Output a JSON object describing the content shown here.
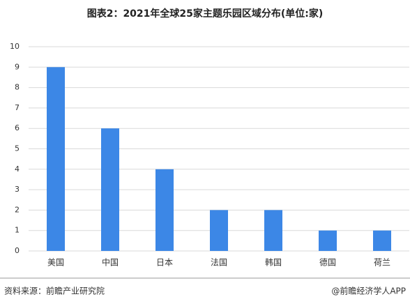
{
  "chart_data": {
    "type": "bar",
    "title": "图表2：2021年全球25家主题乐园区域分布(单位:家)",
    "categories": [
      "美国",
      "中国",
      "日本",
      "法国",
      "韩国",
      "德国",
      "荷兰"
    ],
    "values": [
      9,
      6,
      4,
      2,
      2,
      1,
      1
    ],
    "color": "#3c87e6",
    "ylim": [
      0,
      10
    ],
    "yticks": [
      0,
      1,
      2,
      3,
      4,
      5,
      6,
      7,
      8,
      9,
      10
    ],
    "grid": true,
    "source": "资料来源：前瞻产业研究院",
    "credit": "@前瞻经济学人APP"
  }
}
